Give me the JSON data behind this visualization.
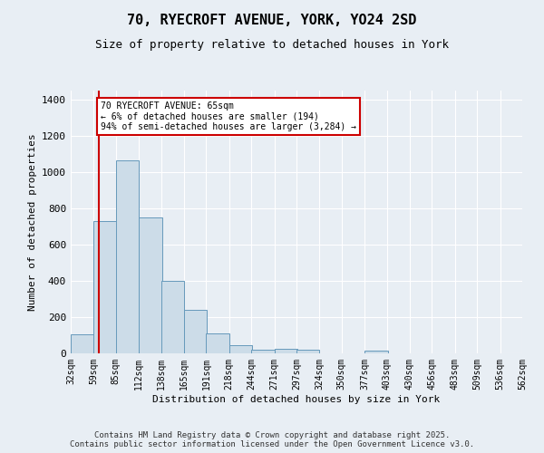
{
  "title": "70, RYECROFT AVENUE, YORK, YO24 2SD",
  "subtitle": "Size of property relative to detached houses in York",
  "xlabel": "Distribution of detached houses by size in York",
  "ylabel": "Number of detached properties",
  "bin_labels": [
    "32sqm",
    "59sqm",
    "85sqm",
    "112sqm",
    "138sqm",
    "165sqm",
    "191sqm",
    "218sqm",
    "244sqm",
    "271sqm",
    "297sqm",
    "324sqm",
    "350sqm",
    "377sqm",
    "403sqm",
    "430sqm",
    "456sqm",
    "483sqm",
    "509sqm",
    "536sqm",
    "562sqm"
  ],
  "bin_edges": [
    32,
    59,
    85,
    112,
    138,
    165,
    191,
    218,
    244,
    271,
    297,
    324,
    350,
    377,
    403,
    430,
    456,
    483,
    509,
    536,
    562
  ],
  "bar_heights": [
    107,
    730,
    1065,
    750,
    400,
    240,
    110,
    45,
    20,
    25,
    20,
    0,
    0,
    15,
    0,
    0,
    0,
    0,
    0,
    0
  ],
  "bar_color": "#ccdce8",
  "bar_edge_color": "#6699bb",
  "property_size": 65,
  "annotation_text": "70 RYECROFT AVENUE: 65sqm\n← 6% of detached houses are smaller (194)\n94% of semi-detached houses are larger (3,284) →",
  "annotation_box_color": "#ffffff",
  "annotation_box_edge_color": "#cc0000",
  "vline_color": "#cc0000",
  "ylim": [
    0,
    1450
  ],
  "yticks": [
    0,
    200,
    400,
    600,
    800,
    1000,
    1200,
    1400
  ],
  "bg_color": "#e8eef4",
  "footer_line1": "Contains HM Land Registry data © Crown copyright and database right 2025.",
  "footer_line2": "Contains public sector information licensed under the Open Government Licence v3.0."
}
